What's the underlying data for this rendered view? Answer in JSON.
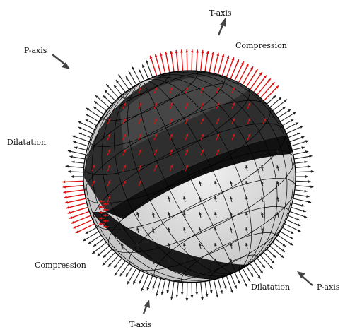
{
  "labels": {
    "t_axis_top": "T-axis",
    "t_axis_bottom": "T-axis",
    "p_axis_left": "P-axis",
    "p_axis_right": "P-axis",
    "compression_top": "Compression",
    "compression_bottom": "Compression",
    "dilatation_left": "Dilatation",
    "dilatation_bottom": "Dilatation"
  },
  "colors": {
    "compression_arrow": "#e01010",
    "dilatation_arrow": "#222222",
    "dark_quadrant": "#1a1a1a",
    "dark_quadrant_mid": "#3c3c3c",
    "light_quadrant": "#d8d8d8",
    "mesh_line": "#000000",
    "axis_arrow": "#444444"
  }
}
